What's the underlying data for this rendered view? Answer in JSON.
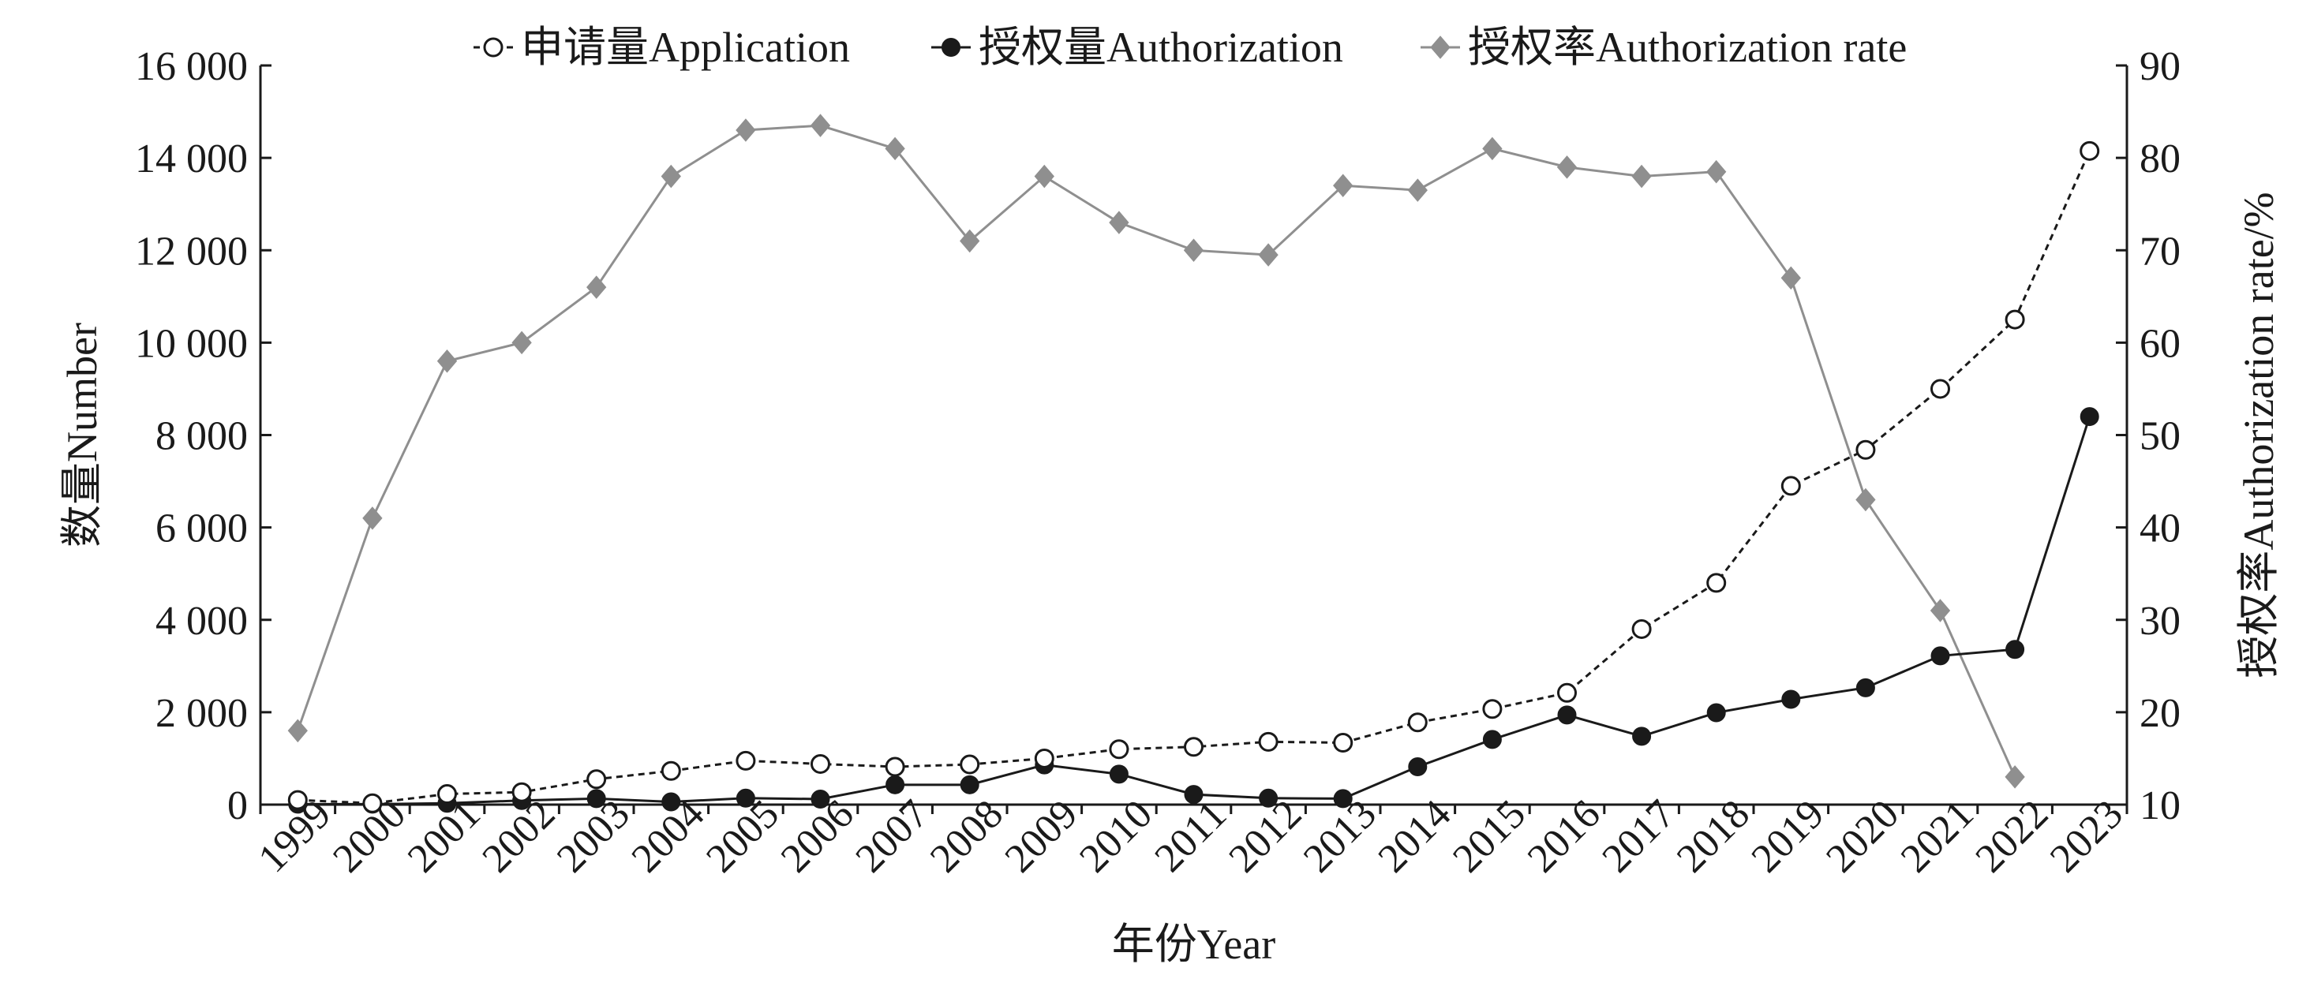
{
  "chart_data": {
    "type": "line",
    "categories": [
      "1999",
      "2000",
      "2001",
      "2002",
      "2003",
      "2004",
      "2005",
      "2006",
      "2007",
      "2008",
      "2009",
      "2010",
      "2011",
      "2012",
      "2013",
      "2014",
      "2015",
      "2016",
      "2017",
      "2018",
      "2019",
      "2020",
      "2021",
      "2022",
      "2023"
    ],
    "xlabel": "年份Year",
    "ylabel_left": "数量Number",
    "ylabel_right": "授权率Authorization rate/%",
    "ylim_left": [
      0,
      16000
    ],
    "yticks_left": [
      0,
      2000,
      4000,
      6000,
      8000,
      10000,
      12000,
      14000,
      16000
    ],
    "ytick_labels_left": [
      "0",
      "2 000",
      "4 000",
      "6 000",
      "8 000",
      "10 000",
      "12 000",
      "14 000",
      "16 000"
    ],
    "ylim_right": [
      10,
      90
    ],
    "yticks_right": [
      10,
      20,
      30,
      40,
      50,
      60,
      70,
      80,
      90
    ],
    "ytick_labels_right": [
      "10",
      "20",
      "30",
      "40",
      "50",
      "60",
      "70",
      "80",
      "90"
    ],
    "legend_position": "top-center",
    "grid": false,
    "series": [
      {
        "name": "申请量Application",
        "axis": "left",
        "style": "dashed-open-circle",
        "color": "#1a1a1a",
        "values": [
          100,
          30,
          230,
          270,
          550,
          730,
          950,
          880,
          820,
          870,
          1000,
          1200,
          1250,
          1360,
          1340,
          1780,
          2070,
          2420,
          3800,
          4800,
          6900,
          7680,
          9000,
          10500,
          14150
        ]
      },
      {
        "name": "授权量Authorization",
        "axis": "left",
        "style": "solid-filled-circle",
        "color": "#1a1a1a",
        "values": [
          10,
          10,
          30,
          90,
          130,
          60,
          140,
          120,
          430,
          430,
          860,
          660,
          220,
          140,
          130,
          820,
          1410,
          1940,
          1480,
          1990,
          2280,
          2530,
          3220,
          3360,
          8400
        ]
      },
      {
        "name": "授权率Authorization rate",
        "axis": "right",
        "style": "solid-diamond",
        "color": "#8f8f8f",
        "values": [
          18,
          41,
          58,
          60,
          66,
          78,
          83,
          83.5,
          81,
          71,
          78,
          73,
          70,
          69.5,
          77,
          76.5,
          81,
          79,
          78,
          78.5,
          67,
          43,
          31,
          13,
          null
        ]
      }
    ]
  }
}
